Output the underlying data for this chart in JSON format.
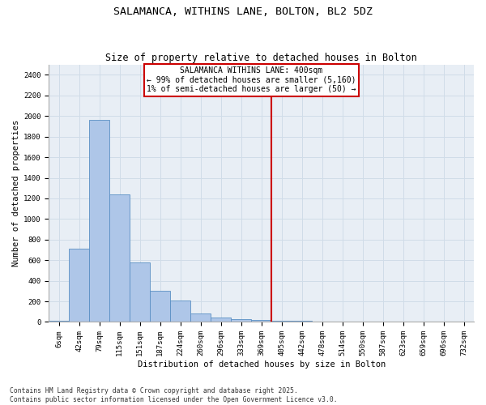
{
  "title_line1": "SALAMANCA, WITHINS LANE, BOLTON, BL2 5DZ",
  "title_line2": "Size of property relative to detached houses in Bolton",
  "xlabel": "Distribution of detached houses by size in Bolton",
  "ylabel": "Number of detached properties",
  "bar_labels": [
    "6sqm",
    "42sqm",
    "79sqm",
    "115sqm",
    "151sqm",
    "187sqm",
    "224sqm",
    "260sqm",
    "296sqm",
    "333sqm",
    "369sqm",
    "405sqm",
    "442sqm",
    "478sqm",
    "514sqm",
    "550sqm",
    "587sqm",
    "623sqm",
    "659sqm",
    "696sqm",
    "732sqm"
  ],
  "bar_values": [
    10,
    715,
    1960,
    1235,
    580,
    305,
    205,
    85,
    45,
    28,
    18,
    10,
    8,
    5,
    3,
    2,
    1,
    1,
    0,
    0,
    0
  ],
  "bar_color": "#aec6e8",
  "bar_edge_color": "#5a8fc4",
  "vline_x": 10.5,
  "vline_color": "#cc0000",
  "annotation_text": "SALAMANCA WITHINS LANE: 400sqm\n← 99% of detached houses are smaller (5,160)\n1% of semi-detached houses are larger (50) →",
  "annotation_box_color": "#cc0000",
  "ylim": [
    0,
    2500
  ],
  "yticks": [
    0,
    200,
    400,
    600,
    800,
    1000,
    1200,
    1400,
    1600,
    1800,
    2000,
    2200,
    2400
  ],
  "grid_color": "#d0dce8",
  "bg_color": "#e8eef5",
  "footnote": "Contains HM Land Registry data © Crown copyright and database right 2025.\nContains public sector information licensed under the Open Government Licence v3.0.",
  "title_fontsize": 9.5,
  "subtitle_fontsize": 8.5,
  "axis_label_fontsize": 7.5,
  "tick_fontsize": 6.5,
  "annotation_fontsize": 7.0,
  "ylabel_fontsize": 7.5
}
